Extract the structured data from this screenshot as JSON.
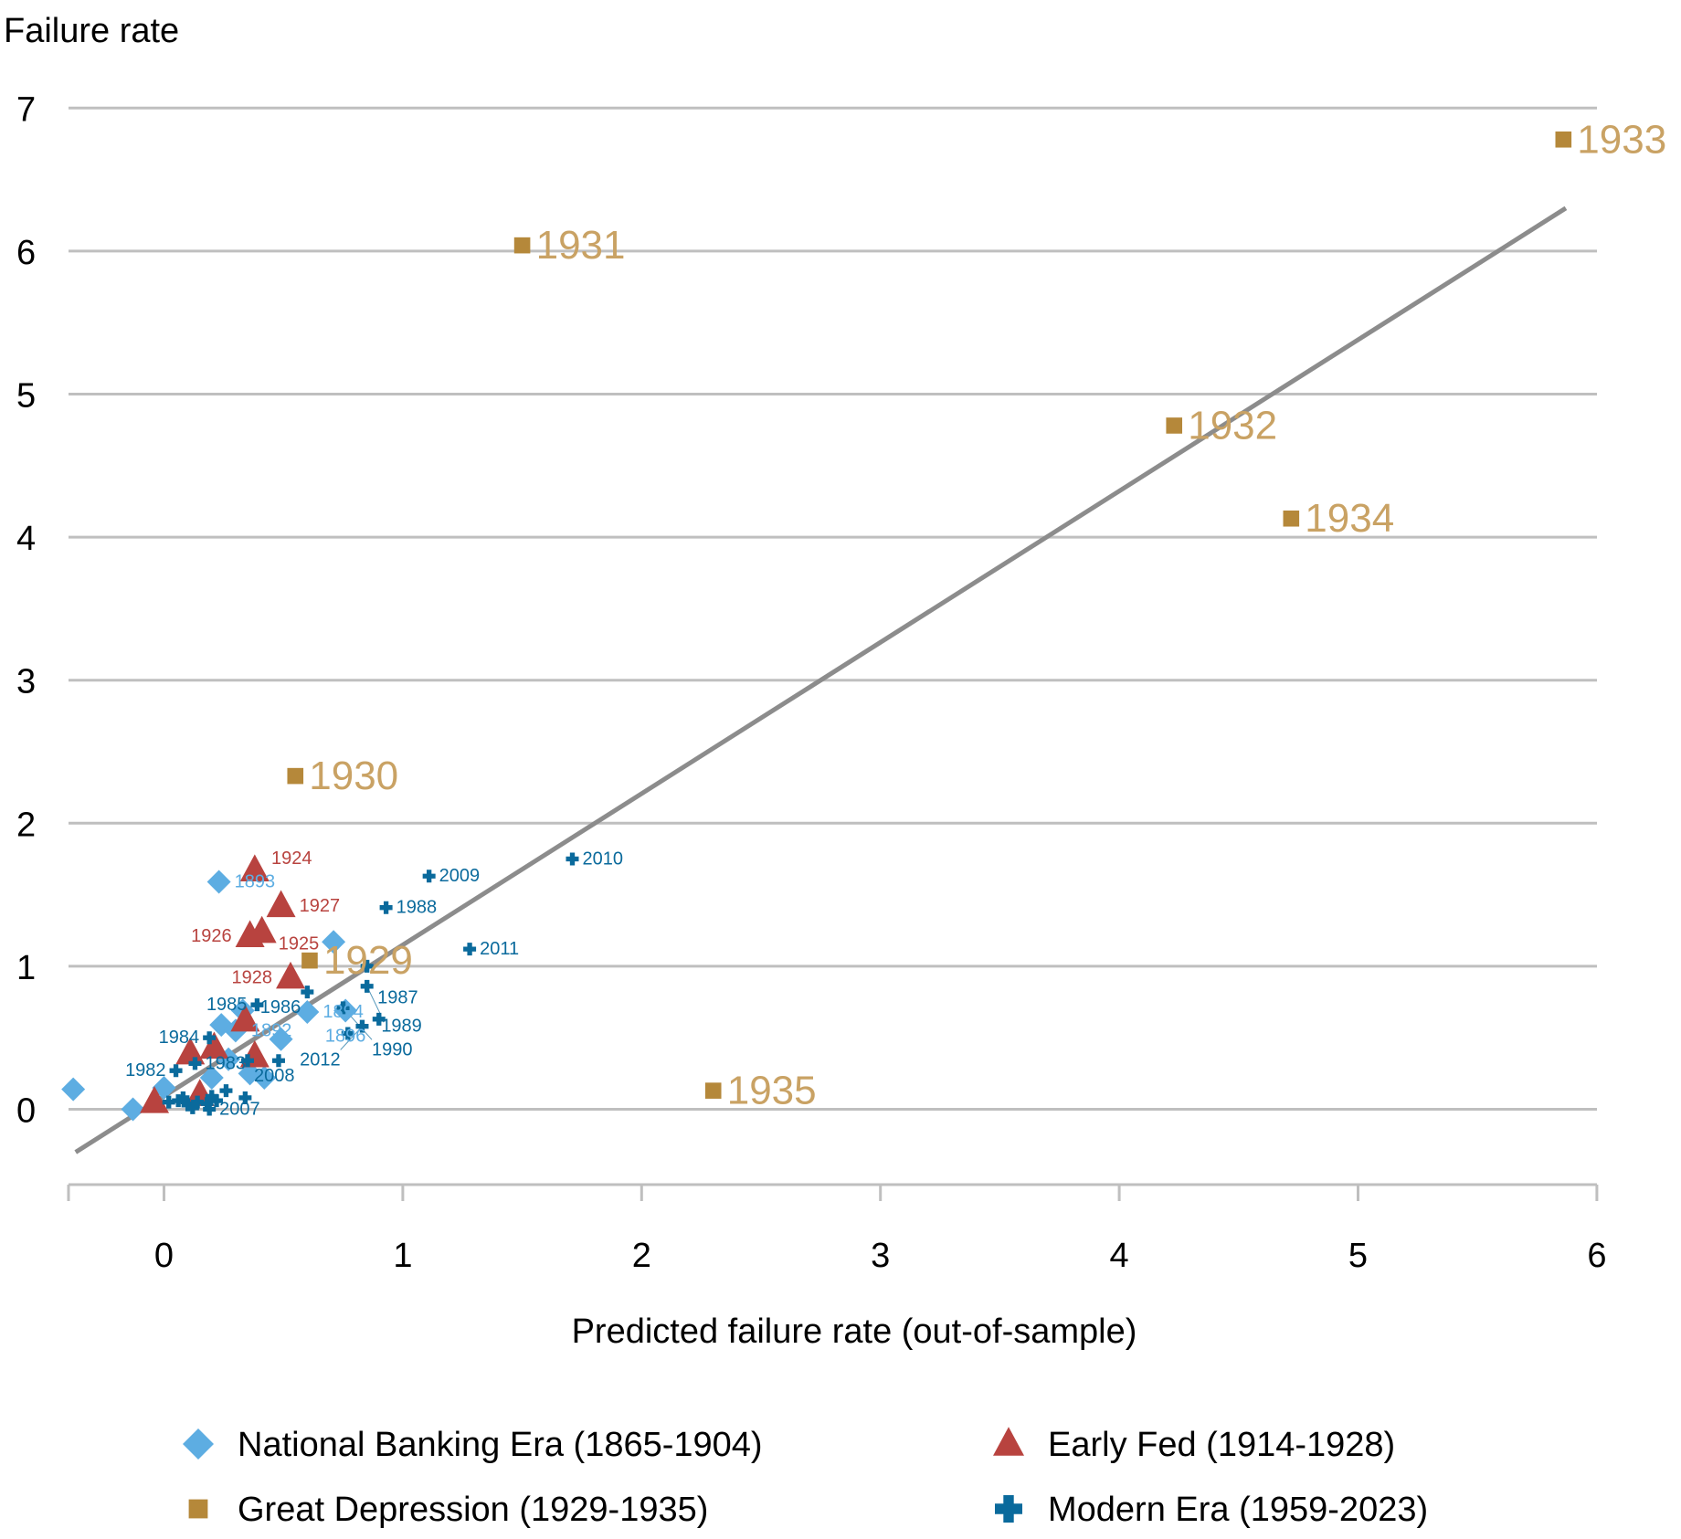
{
  "chart_data": {
    "type": "scatter",
    "ylabel": "Failure rate",
    "xlabel": "Predicted failure rate (out-of-sample)",
    "xlim": [
      -0.4,
      6
    ],
    "ylim": [
      -0.5,
      7
    ],
    "xticks": [
      "0",
      "1",
      "2",
      "3",
      "4",
      "5",
      "6"
    ],
    "yticks": [
      "0",
      "1",
      "2",
      "3",
      "4",
      "5",
      "6",
      "7"
    ],
    "grid": "horizontal",
    "legend_placement": "bottom",
    "trend_line": {
      "x": [
        -0.37,
        5.87
      ],
      "y": [
        -0.3,
        6.3
      ],
      "color": "#8c8c8c"
    },
    "series": [
      {
        "name": "National Banking Era (1865-1904)",
        "marker": "diamond",
        "color": "#5dade2",
        "points": [
          {
            "x": 0.23,
            "y": 1.59,
            "label": "1893"
          },
          {
            "x": 0.71,
            "y": 1.17,
            "label": ""
          },
          {
            "x": 0.6,
            "y": 0.68,
            "label": "1894"
          },
          {
            "x": 0.76,
            "y": 0.69,
            "label": "1896"
          },
          {
            "x": 0.33,
            "y": 0.69,
            "label": ""
          },
          {
            "x": 0.24,
            "y": 0.59,
            "label": ""
          },
          {
            "x": 0.3,
            "y": 0.55,
            "label": "1892"
          },
          {
            "x": 0.49,
            "y": 0.49,
            "label": ""
          },
          {
            "x": 0.27,
            "y": 0.35,
            "label": ""
          },
          {
            "x": 0.36,
            "y": 0.25,
            "label": ""
          },
          {
            "x": 0.42,
            "y": 0.22,
            "label": ""
          },
          {
            "x": 0.2,
            "y": 0.22,
            "label": ""
          },
          {
            "x": 0.0,
            "y": 0.15,
            "label": ""
          },
          {
            "x": -0.38,
            "y": 0.14,
            "label": ""
          },
          {
            "x": -0.13,
            "y": 0.0,
            "label": ""
          }
        ]
      },
      {
        "name": "Early Fed (1914-1928)",
        "marker": "triangle",
        "color": "#b8433f",
        "points": [
          {
            "x": 0.38,
            "y": 1.67,
            "label": "1924"
          },
          {
            "x": 0.49,
            "y": 1.42,
            "label": "1927"
          },
          {
            "x": 0.41,
            "y": 1.24,
            "label": "1925"
          },
          {
            "x": 0.36,
            "y": 1.21,
            "label": "1926"
          },
          {
            "x": 0.53,
            "y": 0.92,
            "label": "1928"
          },
          {
            "x": 0.34,
            "y": 0.62,
            "label": ""
          },
          {
            "x": 0.21,
            "y": 0.43,
            "label": ""
          },
          {
            "x": 0.11,
            "y": 0.39,
            "label": ""
          },
          {
            "x": 0.38,
            "y": 0.37,
            "label": ""
          },
          {
            "x": -0.04,
            "y": 0.05,
            "label": ""
          },
          {
            "x": 0.15,
            "y": 0.1,
            "label": ""
          }
        ]
      },
      {
        "name": "Great Depression (1929-1935)",
        "marker": "square",
        "color": "#b5883a",
        "label_color": "#c9a264",
        "points": [
          {
            "x": 0.61,
            "y": 1.04,
            "label": "1929"
          },
          {
            "x": 0.55,
            "y": 2.33,
            "label": "1930"
          },
          {
            "x": 1.5,
            "y": 6.04,
            "label": "1931"
          },
          {
            "x": 4.23,
            "y": 4.78,
            "label": "1932"
          },
          {
            "x": 5.86,
            "y": 6.78,
            "label": "1933"
          },
          {
            "x": 4.72,
            "y": 4.13,
            "label": "1934"
          },
          {
            "x": 2.3,
            "y": 0.13,
            "label": "1935"
          }
        ]
      },
      {
        "name": "Modern Era (1959-2023)",
        "marker": "plus",
        "color": "#0a6a9c",
        "points": [
          {
            "x": 1.11,
            "y": 1.63,
            "label": "2009"
          },
          {
            "x": 1.71,
            "y": 1.75,
            "label": "2010"
          },
          {
            "x": 0.93,
            "y": 1.41,
            "label": "1988"
          },
          {
            "x": 1.28,
            "y": 1.12,
            "label": "2011"
          },
          {
            "x": 0.85,
            "y": 1.0,
            "label": "1987"
          },
          {
            "x": 0.85,
            "y": 0.86,
            "label": "1989"
          },
          {
            "x": 0.6,
            "y": 0.82,
            "label": "1986"
          },
          {
            "x": 0.39,
            "y": 0.73,
            "label": "1985"
          },
          {
            "x": 0.75,
            "y": 0.71,
            "label": "1990"
          },
          {
            "x": 0.83,
            "y": 0.58,
            "label": "2012"
          },
          {
            "x": 0.19,
            "y": 0.5,
            "label": "1984"
          },
          {
            "x": 0.35,
            "y": 0.34,
            "label": "2008"
          },
          {
            "x": 0.13,
            "y": 0.32,
            "label": "1983"
          },
          {
            "x": 0.05,
            "y": 0.27,
            "label": "1982"
          },
          {
            "x": 0.19,
            "y": 0.0,
            "label": "2007"
          },
          {
            "x": 0.77,
            "y": 0.53,
            "label": ""
          },
          {
            "x": 0.9,
            "y": 0.63,
            "label": ""
          },
          {
            "x": 0.48,
            "y": 0.34,
            "label": ""
          },
          {
            "x": 0.26,
            "y": 0.13,
            "label": ""
          },
          {
            "x": 0.34,
            "y": 0.08,
            "label": ""
          },
          {
            "x": 0.02,
            "y": 0.05,
            "label": ""
          },
          {
            "x": 0.06,
            "y": 0.06,
            "label": ""
          },
          {
            "x": 0.1,
            "y": 0.03,
            "label": ""
          },
          {
            "x": 0.14,
            "y": 0.05,
            "label": ""
          },
          {
            "x": 0.18,
            "y": 0.04,
            "label": ""
          },
          {
            "x": 0.22,
            "y": 0.06,
            "label": ""
          },
          {
            "x": 0.08,
            "y": 0.08,
            "label": ""
          },
          {
            "x": 0.12,
            "y": 0.01,
            "label": ""
          },
          {
            "x": 0.2,
            "y": 0.09,
            "label": ""
          }
        ]
      }
    ]
  }
}
